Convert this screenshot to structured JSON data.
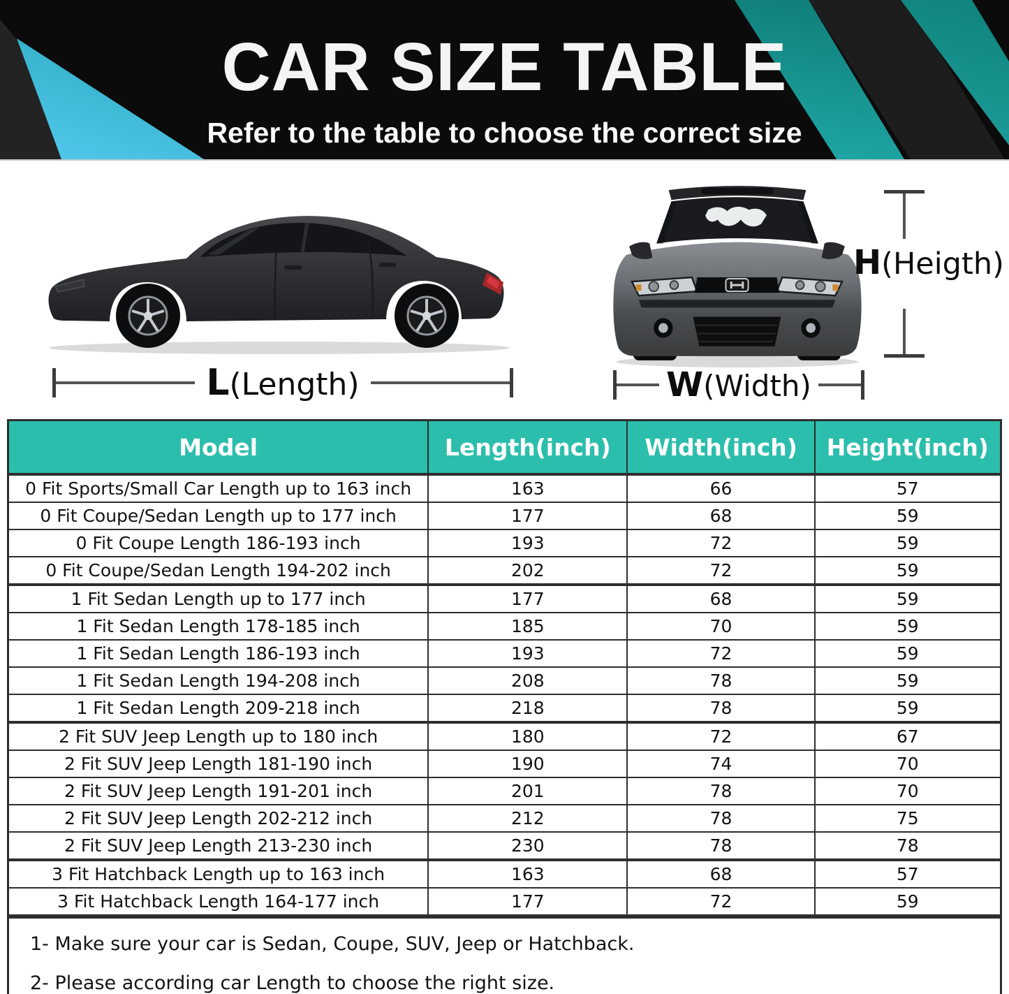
{
  "banner": {
    "title": "CAR SIZE TABLE",
    "subtitle": "Refer to the table to choose the correct size"
  },
  "diagram": {
    "length": {
      "symbol": "L",
      "caption": "(Length)"
    },
    "width": {
      "symbol": "W",
      "caption": "(Width)"
    },
    "height": {
      "symbol": "H",
      "caption": "(Heigth)"
    }
  },
  "table": {
    "headers": [
      "Model",
      "Length(inch)",
      "Width(inch)",
      "Height(inch)"
    ],
    "rows": [
      {
        "model": "0 Fit Sports/Small Car Length up to 163 inch",
        "length": "163",
        "width": "66",
        "height": "57"
      },
      {
        "model": "0 Fit Coupe/Sedan Length up to 177 inch",
        "length": "177",
        "width": "68",
        "height": "59"
      },
      {
        "model": "0 Fit Coupe Length 186-193 inch",
        "length": "193",
        "width": "72",
        "height": "59"
      },
      {
        "model": "0 Fit Coupe/Sedan Length 194-202 inch",
        "length": "202",
        "width": "72",
        "height": "59"
      },
      {
        "model": "1 Fit Sedan Length up to 177 inch",
        "length": "177",
        "width": "68",
        "height": "59"
      },
      {
        "model": "1 Fit Sedan Length 178-185 inch",
        "length": "185",
        "width": "70",
        "height": "59"
      },
      {
        "model": "1 Fit Sedan Length 186-193 inch",
        "length": "193",
        "width": "72",
        "height": "59"
      },
      {
        "model": "1 Fit Sedan Length 194-208 inch",
        "length": "208",
        "width": "78",
        "height": "59"
      },
      {
        "model": "1 Fit Sedan Length 209-218 inch",
        "length": "218",
        "width": "78",
        "height": "59"
      },
      {
        "model": "2 Fit SUV Jeep Length up to 180 inch",
        "length": "180",
        "width": "72",
        "height": "67"
      },
      {
        "model": "2 Fit SUV Jeep Length 181-190 inch",
        "length": "190",
        "width": "74",
        "height": "70"
      },
      {
        "model": "2 Fit SUV Jeep Length 191-201 inch",
        "length": "201",
        "width": "78",
        "height": "70"
      },
      {
        "model": "2 Fit SUV Jeep Length 202-212 inch",
        "length": "212",
        "width": "78",
        "height": "75"
      },
      {
        "model": "2 Fit SUV Jeep Length 213-230 inch",
        "length": "230",
        "width": "78",
        "height": "78"
      },
      {
        "model": "3 Fit Hatchback Length up to 163 inch",
        "length": "163",
        "width": "68",
        "height": "57"
      },
      {
        "model": "3 Fit Hatchback Length 164-177 inch",
        "length": "177",
        "width": "72",
        "height": "59"
      }
    ]
  },
  "notes": [
    "1- Make sure your car is Sedan, Coupe, SUV, Jeep or Hatchback.",
    "2- Please according car Length to choose the right size."
  ],
  "colors": {
    "header_teal": "#2CBEAC",
    "table_border": "#2E2E2E",
    "banner_black": "#0B0B0B",
    "accent_cyan": "#4FC6EA",
    "accent_teal_dark": "#0E7470",
    "taillight_red": "#A8262C"
  }
}
